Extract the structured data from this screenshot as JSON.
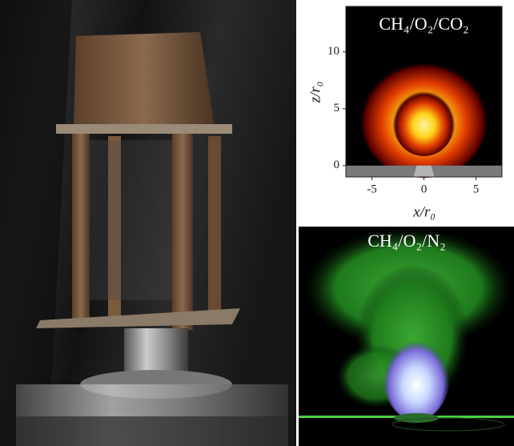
{
  "chart_data": {
    "type": "heatmap",
    "title": "CH₄/O₂/CO₂",
    "x_label": "x/r₀",
    "y_label": "z/r₀",
    "xlim": [
      -7.5,
      7.5
    ],
    "ylim": [
      -1,
      14
    ],
    "xticks": [
      -5,
      0,
      5
    ],
    "yticks": [
      0,
      5,
      10
    ]
  },
  "photo": {
    "label": "CH₄/O₂/N₂"
  }
}
